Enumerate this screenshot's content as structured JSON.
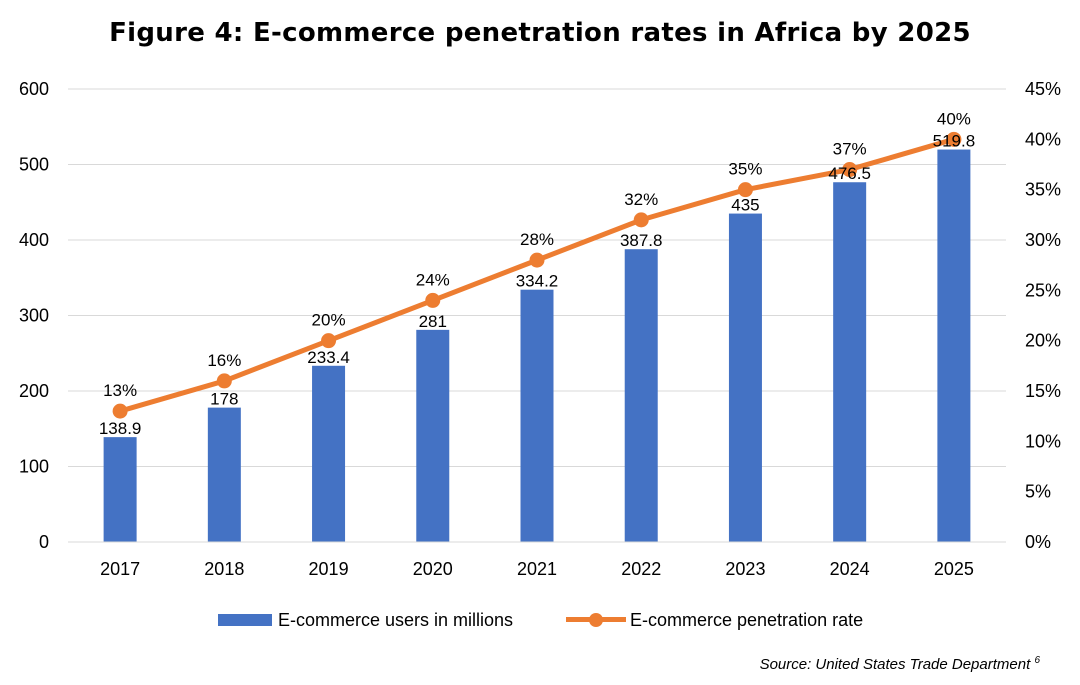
{
  "chart_data": {
    "type": "bar",
    "title": "Figure 4: E-commerce penetration rates in Africa by 2025",
    "categories": [
      "2017",
      "2018",
      "2019",
      "2020",
      "2021",
      "2022",
      "2023",
      "2024",
      "2025"
    ],
    "series": [
      {
        "name": "E-commerce users in millions",
        "type": "bar",
        "axis": "left",
        "color": "#4472C4",
        "values": [
          138.9,
          178,
          233.4,
          281,
          334.2,
          387.8,
          435,
          476.5,
          519.8
        ],
        "labels": [
          "138.9",
          "178",
          "233.4",
          "281",
          "334.2",
          "387.8",
          "435",
          "476.5",
          "519.8"
        ]
      },
      {
        "name": "E-commerce penetration rate",
        "type": "line",
        "axis": "right",
        "color": "#ED7D31",
        "values": [
          13,
          16,
          20,
          24,
          28,
          32,
          35,
          37,
          40
        ],
        "labels": [
          "13%",
          "16%",
          "20%",
          "24%",
          "28%",
          "32%",
          "35%",
          "37%",
          "40%"
        ]
      }
    ],
    "left_axis": {
      "ylim": [
        0,
        600
      ],
      "ticks": [
        0,
        100,
        200,
        300,
        400,
        500,
        600
      ],
      "tick_labels": [
        "0",
        "100",
        "200",
        "300",
        "400",
        "500",
        "600"
      ]
    },
    "right_axis": {
      "ylim": [
        0,
        45
      ],
      "ticks": [
        0,
        5,
        10,
        15,
        20,
        25,
        30,
        35,
        40,
        45
      ],
      "tick_labels": [
        "0%",
        "5%",
        "10%",
        "15%",
        "20%",
        "25%",
        "30%",
        "35%",
        "40%",
        "45%"
      ]
    },
    "grid": true,
    "legend_position": "bottom",
    "xlabel": "",
    "ylabel": ""
  },
  "legend": {
    "bar_label": "E-commerce users in millions",
    "line_label": "E-commerce penetration rate"
  },
  "source": {
    "text": "Source: United States Trade Department",
    "footnote": "6"
  }
}
